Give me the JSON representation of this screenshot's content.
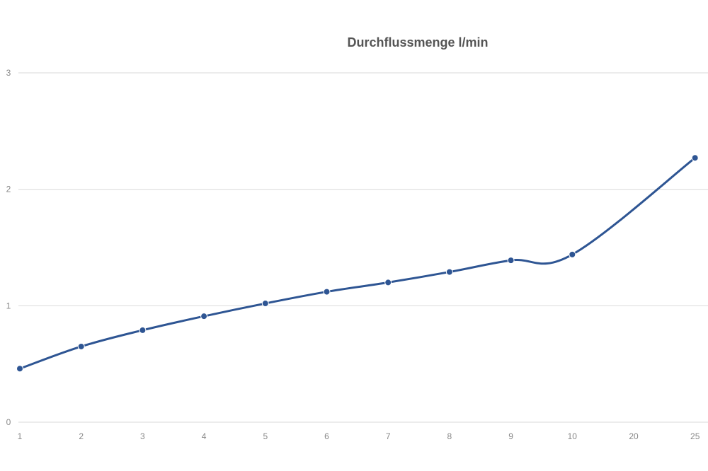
{
  "chart_data": {
    "type": "line",
    "title": "Durchflussmenge l/min",
    "xlabel": "",
    "ylabel": "",
    "categories": [
      "1",
      "2",
      "3",
      "4",
      "5",
      "6",
      "7",
      "8",
      "9",
      "10",
      "20",
      "25"
    ],
    "series": [
      {
        "values": [
          0.46,
          0.65,
          0.79,
          0.91,
          1.02,
          1.12,
          1.2,
          1.29,
          1.39,
          1.44,
          null,
          2.27
        ]
      }
    ],
    "ylim": [
      0,
      3
    ],
    "yticks": [
      0,
      1,
      2,
      3
    ],
    "grid": true,
    "smooth": true,
    "colors": {
      "line": "#2e5593",
      "grid": "#d9d9d9",
      "text": "#888888",
      "title": "#555555"
    }
  }
}
